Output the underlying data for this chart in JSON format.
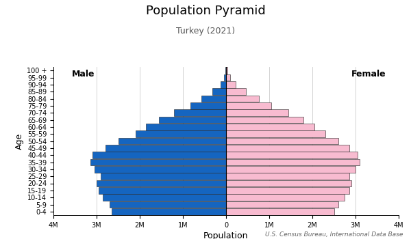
{
  "title": "Population Pyramid",
  "subtitle": "Turkey (2021)",
  "source": "U.S. Census Bureau, International Data Base",
  "xlabel": "Population",
  "ylabel": "Age",
  "age_groups": [
    "0-4",
    "5-9",
    "10-14",
    "15-19",
    "20-24",
    "25-29",
    "30-34",
    "35-39",
    "40-44",
    "45-49",
    "50-54",
    "55-59",
    "60-64",
    "65-69",
    "70-74",
    "75-79",
    "80-84",
    "85-89",
    "90-94",
    "95-99",
    "100 +"
  ],
  "male": [
    2650000,
    2700000,
    2850000,
    2950000,
    3000000,
    2900000,
    3050000,
    3150000,
    3100000,
    2800000,
    2500000,
    2100000,
    1850000,
    1550000,
    1200000,
    820000,
    570000,
    320000,
    130000,
    45000,
    12000
  ],
  "female": [
    2500000,
    2600000,
    2750000,
    2850000,
    2900000,
    2850000,
    3000000,
    3100000,
    3050000,
    2850000,
    2600000,
    2300000,
    2050000,
    1800000,
    1450000,
    1050000,
    760000,
    460000,
    230000,
    90000,
    25000
  ],
  "male_color": "#1565c0",
  "female_color": "#f8bbd0",
  "bar_edgecolor": "#222222",
  "xlim": 4000000,
  "background_color": "#ffffff",
  "title_fontsize": 13,
  "subtitle_fontsize": 9,
  "label_fontsize": 9,
  "tick_fontsize": 7,
  "source_fontsize": 6.5
}
